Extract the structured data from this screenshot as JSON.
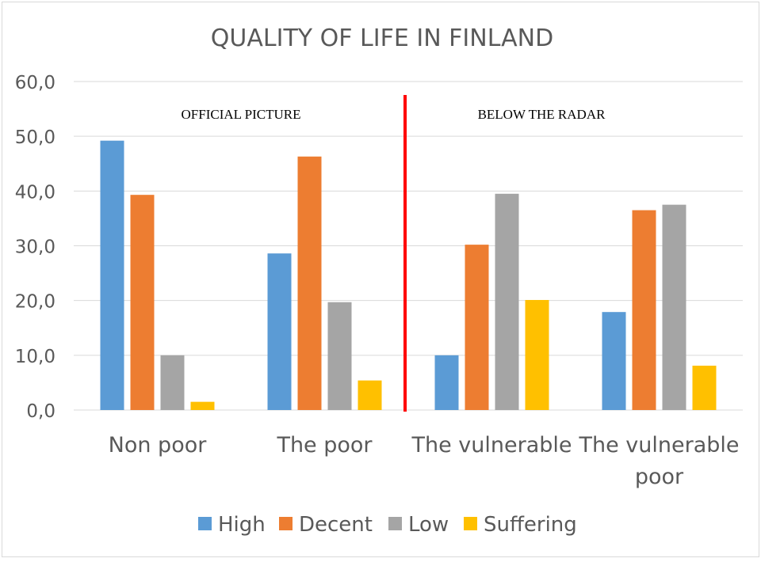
{
  "chart_data": {
    "type": "bar",
    "title": "QUALITY OF LIFE IN FINLAND",
    "categories": [
      [
        "Non poor"
      ],
      [
        "The poor"
      ],
      [
        "The vulnerable"
      ],
      [
        "The vulnerable",
        "poor"
      ]
    ],
    "series": [
      {
        "name": "High",
        "color": "#5b9bd5",
        "values": [
          49.2,
          28.6,
          10.0,
          17.9
        ]
      },
      {
        "name": "Decent",
        "color": "#ed7d31",
        "values": [
          39.3,
          46.3,
          30.2,
          36.5
        ]
      },
      {
        "name": "Low",
        "color": "#a5a5a5",
        "values": [
          10.0,
          19.7,
          39.5,
          37.5
        ]
      },
      {
        "name": "Suffering",
        "color": "#ffc000",
        "values": [
          1.5,
          5.4,
          20.1,
          8.1
        ]
      }
    ],
    "ylim": [
      0,
      60
    ],
    "yticks": [
      "0,0",
      "10,0",
      "20,0",
      "30,0",
      "40,0",
      "50,0",
      "60,0"
    ],
    "xlabel": "",
    "ylabel": "",
    "grid": true,
    "legend": "bottom",
    "annotations": {
      "left_label": "OFFICIAL PICTURE",
      "right_label": "BELOW THE RADAR",
      "divider_color": "#ff0000"
    }
  }
}
